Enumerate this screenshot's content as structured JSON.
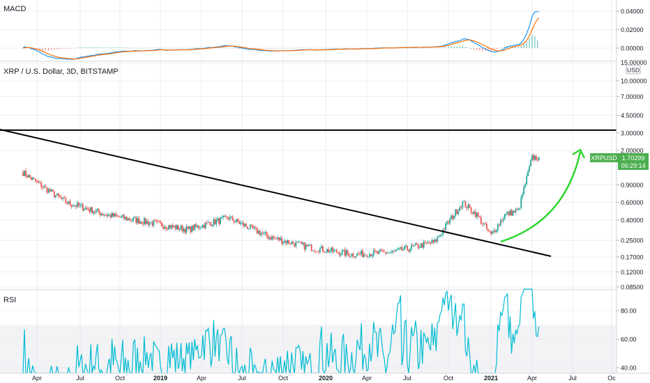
{
  "macd_pane": {
    "label": "MACD",
    "ticks": [
      {
        "label": "0.04000",
        "value": 0.04
      },
      {
        "label": "0.02000",
        "value": 0.02
      },
      {
        "label": "0.00000",
        "value": 0.0
      }
    ]
  },
  "price_pane": {
    "title": "XRP / U.S. Dollar, 3D, BITSTAMP",
    "currency": "USD",
    "ticks": [
      {
        "label": "15.00000",
        "value": 15.0
      },
      {
        "label": "10.00000",
        "value": 10.0
      },
      {
        "label": "7.00000",
        "value": 7.0
      },
      {
        "label": "4.50000",
        "value": 4.5
      },
      {
        "label": "3.00000",
        "value": 3.0
      },
      {
        "label": "2.00000",
        "value": 2.0
      },
      {
        "label": "0.90000",
        "value": 0.9
      },
      {
        "label": "0.60000",
        "value": 0.6
      },
      {
        "label": "0.40000",
        "value": 0.4
      },
      {
        "label": "0.25000",
        "value": 0.25
      },
      {
        "label": "0.17000",
        "value": 0.17
      },
      {
        "label": "0.12000",
        "value": 0.12
      },
      {
        "label": "0.08500",
        "value": 0.085
      }
    ],
    "price_tag": {
      "symbol": "XRPUSD",
      "price": "1.70299",
      "countdown": "06:29:14",
      "value": 1.70299
    }
  },
  "rsi_pane": {
    "label": "RSI",
    "ticks": [
      {
        "label": "80.00",
        "value": 80
      },
      {
        "label": "60.00",
        "value": 60
      },
      {
        "label": "40.00",
        "value": 40
      }
    ],
    "band": [
      30,
      70
    ]
  },
  "time_axis": {
    "labels": [
      "Apr",
      "Jul",
      "Oct",
      "2019",
      "Apr",
      "Jul",
      "Oct",
      "2020",
      "Apr",
      "Jul",
      "Oct",
      "2021",
      "Apr",
      "Jul",
      "Oc"
    ],
    "bold": [
      false,
      false,
      false,
      true,
      false,
      false,
      false,
      true,
      false,
      false,
      false,
      true,
      false,
      false,
      false
    ]
  },
  "colors": {
    "up": "#26a69a",
    "down": "#ef5350",
    "macd_line": "#2196f3",
    "signal_line": "#ff6d00",
    "rsi": "#00bcd4",
    "arrow": "#2fd62f",
    "tag": "#4caf50",
    "grid": "#e0e3eb"
  },
  "chart_data": {
    "type": "line",
    "title": "XRP / U.S. Dollar, 3D, BITSTAMP",
    "x": [
      "2018-03",
      "2018-06",
      "2018-09",
      "2018-12",
      "2019-03",
      "2019-06",
      "2019-09",
      "2019-12",
      "2020-03",
      "2020-06",
      "2020-09",
      "2020-11",
      "2020-12",
      "2021-01",
      "2021-02",
      "2021-03",
      "2021-04"
    ],
    "series": [
      {
        "name": "XRPUSD",
        "values": [
          1.2,
          0.6,
          0.45,
          0.38,
          0.32,
          0.42,
          0.27,
          0.21,
          0.18,
          0.19,
          0.24,
          0.6,
          0.45,
          0.28,
          0.45,
          0.5,
          1.7
        ]
      }
    ],
    "ylim": [
      0.085,
      15.0
    ],
    "log_scale": true,
    "annotations": {
      "horizontal_line": 3.2,
      "descending_trendline": [
        "2018-02",
        "2021-05"
      ]
    },
    "rsi_range": [
      30,
      95
    ],
    "grid": true,
    "legend": "none"
  }
}
